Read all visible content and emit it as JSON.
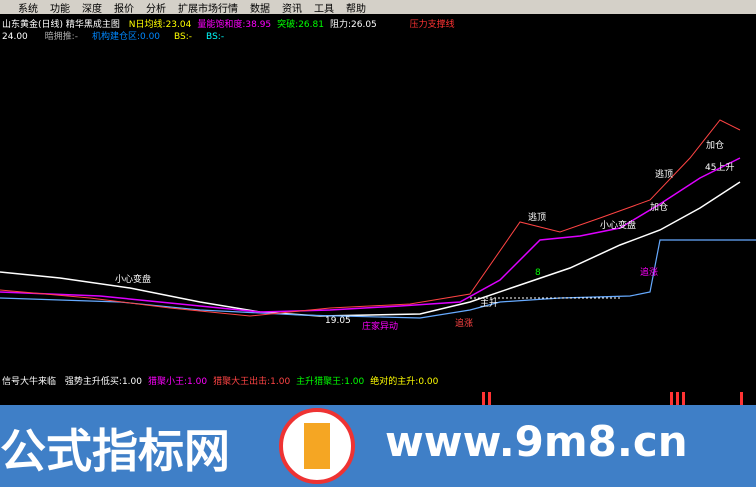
{
  "menu": [
    "系统",
    "功能",
    "深度",
    "报价",
    "分析",
    "扩展市场行情",
    "数据",
    "资讯",
    "工具",
    "帮助"
  ],
  "header": {
    "stock": "山东黄金(日线)",
    "formula": "精华黑成主图",
    "items": [
      {
        "label": "N日均线:",
        "value": "23.04"
      },
      {
        "label": "量能饱和度:",
        "value": "38.95"
      },
      {
        "label": "突破:",
        "value": "26.81"
      },
      {
        "label": "阻力:",
        "value": "26.05"
      }
    ],
    "tag": "压力支撑线"
  },
  "subheader": {
    "price": "24.00",
    "items": [
      {
        "label": "暗拥推:",
        "value": "-"
      },
      {
        "label": "机构建仓区:",
        "value": "0.00"
      },
      {
        "label": "BS:",
        "value": "-"
      },
      {
        "label": "BS:",
        "value": "-"
      }
    ]
  },
  "annotations": [
    "小心变盘",
    "小心变盘",
    "逃顶",
    "逃顶",
    "加仓",
    "加仓",
    "45上升",
    "追涨",
    "追涨",
    "庄家异动",
    "19.05",
    "主升",
    "8"
  ],
  "indicator": {
    "title": "信号大牛来临",
    "items": [
      {
        "label": "强势主升低买:",
        "value": "1.00"
      },
      {
        "label": "猎聚小王:",
        "value": "1.00"
      },
      {
        "label": "猎聚大王出击:",
        "value": "1.00"
      },
      {
        "label": "主升猎聚王:",
        "value": "1.00"
      },
      {
        "label": "绝对的主升:",
        "value": "0.00"
      }
    ]
  },
  "watermark": {
    "name": "公式指标网",
    "url": "www.9m8.cn"
  }
}
